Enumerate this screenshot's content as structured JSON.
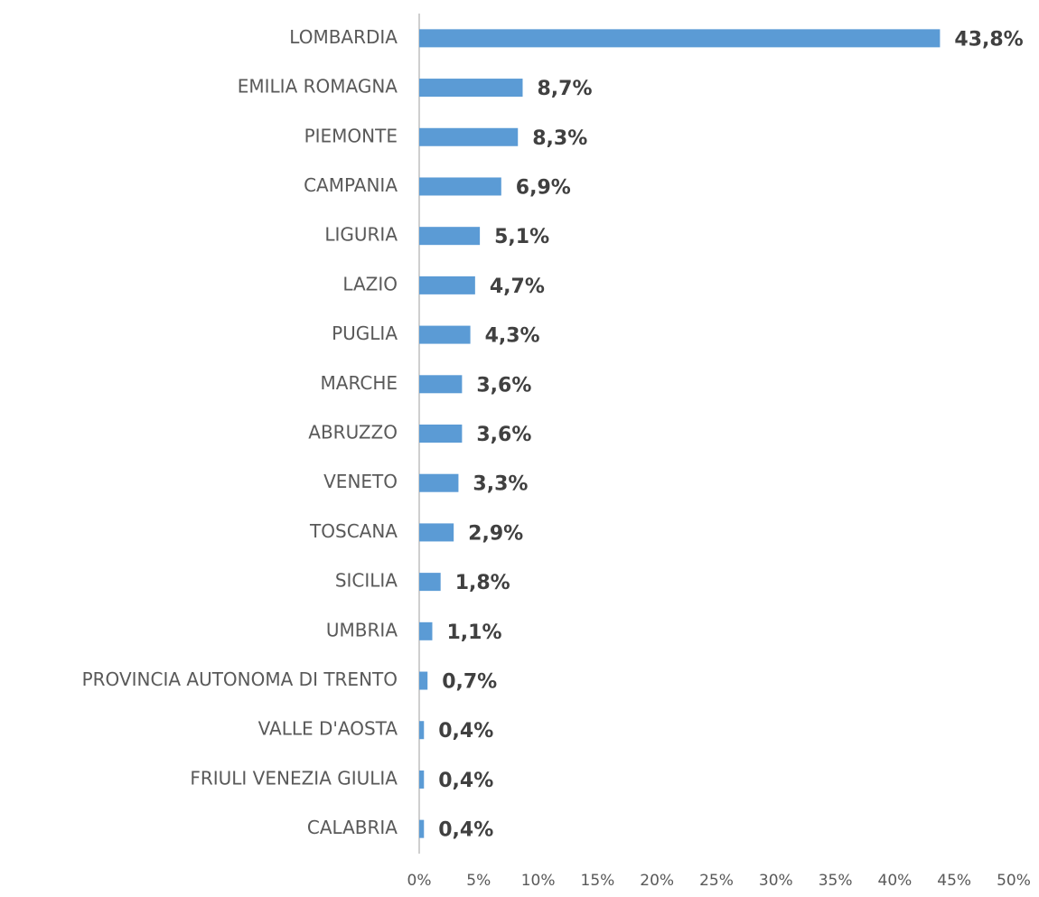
{
  "chart_data": {
    "type": "bar",
    "orientation": "horizontal",
    "categories": [
      "LOMBARDIA",
      "EMILIA ROMAGNA",
      "PIEMONTE",
      "CAMPANIA",
      "LIGURIA",
      "LAZIO",
      "PUGLIA",
      "MARCHE",
      "ABRUZZO",
      "VENETO",
      "TOSCANA",
      "SICILIA",
      "UMBRIA",
      "PROVINCIA AUTONOMA DI TRENTO",
      "VALLE D'AOSTA",
      "FRIULI VENEZIA GIULIA",
      "CALABRIA"
    ],
    "values": [
      43.8,
      8.7,
      8.3,
      6.9,
      5.1,
      4.7,
      4.3,
      3.6,
      3.6,
      3.3,
      2.9,
      1.8,
      1.1,
      0.7,
      0.4,
      0.4,
      0.4
    ],
    "value_labels": [
      "43,8%",
      "8,7%",
      "8,3%",
      "6,9%",
      "5,1%",
      "4,7%",
      "4,3%",
      "3,6%",
      "3,6%",
      "3,3%",
      "2,9%",
      "1,8%",
      "1,1%",
      "0,7%",
      "0,4%",
      "0,4%",
      "0,4%"
    ],
    "color": "#5b9bd5",
    "xlim": [
      0,
      50
    ],
    "xticks": [
      {
        "value": 0,
        "label": "0%"
      },
      {
        "value": 5,
        "label": "5%"
      },
      {
        "value": 10,
        "label": "10%"
      },
      {
        "value": 15,
        "label": "15%"
      },
      {
        "value": 20,
        "label": "20%"
      },
      {
        "value": 25,
        "label": "25%"
      },
      {
        "value": 30,
        "label": "30%"
      },
      {
        "value": 35,
        "label": "35%"
      },
      {
        "value": 40,
        "label": "40%"
      },
      {
        "value": 45,
        "label": "45%"
      },
      {
        "value": 50,
        "label": "50%"
      }
    ],
    "grid": false
  }
}
